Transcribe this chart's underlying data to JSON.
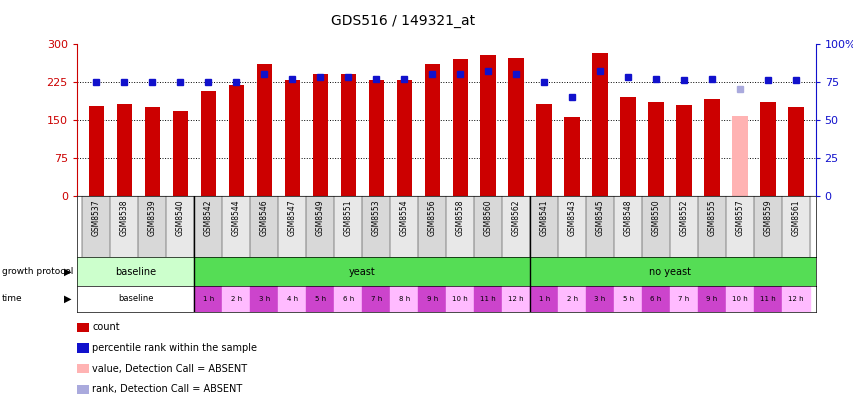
{
  "title": "GDS516 / 149321_at",
  "samples": [
    "GSM8537",
    "GSM8538",
    "GSM8539",
    "GSM8540",
    "GSM8542",
    "GSM8544",
    "GSM8546",
    "GSM8547",
    "GSM8549",
    "GSM8551",
    "GSM8553",
    "GSM8554",
    "GSM8556",
    "GSM8558",
    "GSM8560",
    "GSM8562",
    "GSM8541",
    "GSM8543",
    "GSM8545",
    "GSM8548",
    "GSM8550",
    "GSM8552",
    "GSM8555",
    "GSM8557",
    "GSM8559",
    "GSM8561"
  ],
  "counts": [
    178,
    182,
    175,
    168,
    207,
    218,
    260,
    228,
    240,
    240,
    228,
    228,
    260,
    270,
    278,
    272,
    182,
    155,
    282,
    195,
    185,
    180,
    190,
    158,
    185,
    175
  ],
  "percentiles": [
    75,
    75,
    75,
    75,
    75,
    75,
    80,
    77,
    78,
    78,
    77,
    77,
    80,
    80,
    82,
    80,
    75,
    65,
    82,
    78,
    77,
    76,
    77,
    70,
    76,
    76
  ],
  "absent": [
    false,
    false,
    false,
    false,
    false,
    false,
    false,
    false,
    false,
    false,
    false,
    false,
    false,
    false,
    false,
    false,
    false,
    false,
    false,
    false,
    false,
    false,
    false,
    true,
    false,
    false
  ],
  "bar_color_normal": "#cc0000",
  "bar_color_absent": "#ffb3b3",
  "square_color_normal": "#1111cc",
  "square_color_absent": "#aaaadd",
  "ylim_left": [
    0,
    300
  ],
  "ylim_right": [
    0,
    100
  ],
  "yticks_left": [
    0,
    75,
    150,
    225,
    300
  ],
  "yticks_right": [
    0,
    25,
    50,
    75,
    100
  ],
  "grid_values": [
    75,
    150,
    225
  ],
  "background_color": "#ffffff",
  "gp_baseline_color": "#ccffcc",
  "gp_yeast_color": "#55dd55",
  "time_baseline_color": "#ffffff",
  "time_odd_color": "#ee88ee",
  "time_even_color": "#ffbbff",
  "time_dark_color": "#cc44cc"
}
